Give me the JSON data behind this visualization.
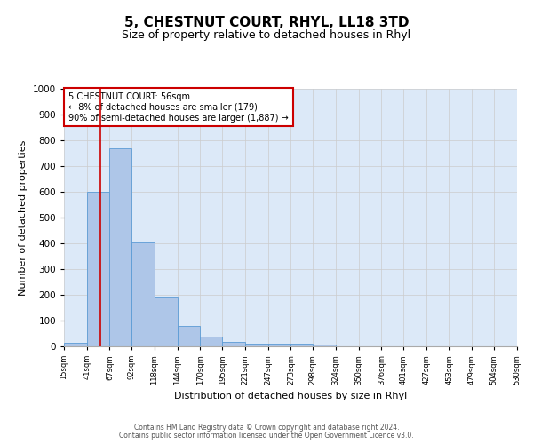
{
  "title": "5, CHESTNUT COURT, RHYL, LL18 3TD",
  "subtitle": "Size of property relative to detached houses in Rhyl",
  "xlabel": "Distribution of detached houses by size in Rhyl",
  "ylabel": "Number of detached properties",
  "bar_edges": [
    15,
    41,
    67,
    92,
    118,
    144,
    170,
    195,
    221,
    247,
    273,
    298,
    324,
    350,
    376,
    401,
    427,
    453,
    479,
    504,
    530
  ],
  "bar_heights": [
    15,
    600,
    770,
    405,
    190,
    80,
    38,
    18,
    12,
    12,
    10,
    8,
    0,
    0,
    0,
    0,
    0,
    0,
    0,
    0
  ],
  "bar_color": "#aec6e8",
  "bar_edgecolor": "#5b9bd5",
  "ylim": [
    0,
    1000
  ],
  "xlim": [
    15,
    530
  ],
  "property_x": 56,
  "annotation_title": "5 CHESTNUT COURT: 56sqm",
  "annotation_line1": "← 8% of detached houses are smaller (179)",
  "annotation_line2": "90% of semi-detached houses are larger (1,887) →",
  "red_line_color": "#cc0000",
  "annotation_box_color": "#cc0000",
  "footer1": "Contains HM Land Registry data © Crown copyright and database right 2024.",
  "footer2": "Contains public sector information licensed under the Open Government Licence v3.0.",
  "tick_labels": [
    "15sqm",
    "41sqm",
    "67sqm",
    "92sqm",
    "118sqm",
    "144sqm",
    "170sqm",
    "195sqm",
    "221sqm",
    "247sqm",
    "273sqm",
    "298sqm",
    "324sqm",
    "350sqm",
    "376sqm",
    "401sqm",
    "427sqm",
    "453sqm",
    "479sqm",
    "504sqm",
    "530sqm"
  ],
  "grid_color": "#cccccc",
  "background_color": "#dce9f8"
}
